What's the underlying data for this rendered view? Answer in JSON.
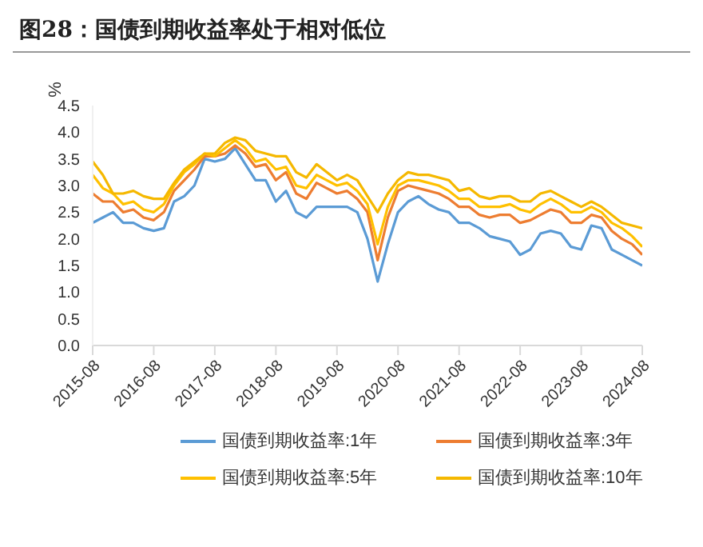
{
  "chart_data": {
    "type": "line",
    "title": "图28：国债到期收益率处于相对低位",
    "ylabel": "%",
    "x": [
      "2015-08",
      "2015-10",
      "2015-12",
      "2016-02",
      "2016-04",
      "2016-06",
      "2016-08",
      "2016-10",
      "2016-12",
      "2017-02",
      "2017-04",
      "2017-06",
      "2017-08",
      "2017-10",
      "2017-12",
      "2018-02",
      "2018-04",
      "2018-06",
      "2018-08",
      "2018-10",
      "2018-12",
      "2019-02",
      "2019-04",
      "2019-06",
      "2019-08",
      "2019-10",
      "2019-12",
      "2020-02",
      "2020-04",
      "2020-06",
      "2020-08",
      "2020-10",
      "2020-12",
      "2021-02",
      "2021-04",
      "2021-06",
      "2021-08",
      "2021-10",
      "2021-12",
      "2022-02",
      "2022-04",
      "2022-06",
      "2022-08",
      "2022-10",
      "2022-12",
      "2023-02",
      "2023-04",
      "2023-06",
      "2023-08",
      "2023-10",
      "2023-12",
      "2024-02",
      "2024-04",
      "2024-06",
      "2024-08"
    ],
    "series": [
      {
        "name": "国债到期收益率:1年",
        "color": "#5b9bd5",
        "values": [
          2.3,
          2.4,
          2.5,
          2.3,
          2.3,
          2.2,
          2.15,
          2.2,
          2.7,
          2.8,
          3.0,
          3.5,
          3.45,
          3.5,
          3.7,
          3.4,
          3.1,
          3.1,
          2.7,
          2.9,
          2.5,
          2.4,
          2.6,
          2.6,
          2.6,
          2.6,
          2.5,
          2.0,
          1.2,
          1.9,
          2.5,
          2.7,
          2.8,
          2.65,
          2.55,
          2.5,
          2.3,
          2.3,
          2.2,
          2.05,
          2.0,
          1.95,
          1.7,
          1.8,
          2.1,
          2.15,
          2.1,
          1.85,
          1.8,
          2.25,
          2.2,
          1.8,
          1.7,
          1.6,
          1.5
        ]
      },
      {
        "name": "国债到期收益率:3年",
        "color": "#ed7d31",
        "values": [
          2.85,
          2.7,
          2.7,
          2.5,
          2.55,
          2.4,
          2.35,
          2.5,
          2.9,
          3.1,
          3.3,
          3.55,
          3.55,
          3.6,
          3.75,
          3.6,
          3.35,
          3.4,
          3.1,
          3.25,
          2.85,
          2.75,
          3.05,
          2.95,
          2.85,
          2.9,
          2.75,
          2.5,
          1.6,
          2.4,
          2.9,
          3.0,
          2.95,
          2.9,
          2.85,
          2.75,
          2.6,
          2.6,
          2.45,
          2.4,
          2.45,
          2.45,
          2.3,
          2.35,
          2.45,
          2.55,
          2.5,
          2.3,
          2.3,
          2.45,
          2.4,
          2.15,
          2.0,
          1.9,
          1.7
        ]
      },
      {
        "name": "国债到期收益率:5年",
        "color": "#ffc000",
        "values": [
          3.2,
          2.95,
          2.85,
          2.65,
          2.7,
          2.55,
          2.5,
          2.65,
          3.0,
          3.25,
          3.4,
          3.6,
          3.55,
          3.7,
          3.85,
          3.7,
          3.45,
          3.5,
          3.3,
          3.35,
          3.0,
          2.95,
          3.2,
          3.1,
          3.0,
          3.05,
          2.9,
          2.65,
          1.9,
          2.6,
          3.0,
          3.1,
          3.1,
          3.05,
          3.0,
          2.9,
          2.75,
          2.75,
          2.6,
          2.6,
          2.6,
          2.65,
          2.55,
          2.5,
          2.65,
          2.75,
          2.65,
          2.5,
          2.5,
          2.6,
          2.5,
          2.3,
          2.2,
          2.05,
          1.85
        ]
      },
      {
        "name": "国债到期收益率:10年",
        "color": "#f5b800",
        "values": [
          3.45,
          3.2,
          2.85,
          2.85,
          2.9,
          2.8,
          2.75,
          2.75,
          3.05,
          3.3,
          3.45,
          3.6,
          3.6,
          3.8,
          3.9,
          3.85,
          3.65,
          3.6,
          3.55,
          3.55,
          3.25,
          3.15,
          3.4,
          3.25,
          3.1,
          3.2,
          3.1,
          2.8,
          2.5,
          2.85,
          3.1,
          3.25,
          3.2,
          3.2,
          3.15,
          3.1,
          2.9,
          2.95,
          2.8,
          2.75,
          2.8,
          2.8,
          2.7,
          2.7,
          2.85,
          2.9,
          2.8,
          2.7,
          2.6,
          2.7,
          2.6,
          2.45,
          2.3,
          2.25,
          2.2
        ]
      }
    ],
    "xlim": [
      "2015-08",
      "2024-08"
    ],
    "xticks": [
      "2015-08",
      "2016-08",
      "2017-08",
      "2018-08",
      "2019-08",
      "2020-08",
      "2021-08",
      "2022-08",
      "2023-08",
      "2024-08"
    ],
    "ylim": [
      0,
      4.5
    ],
    "yticks": [
      {
        "value": 0,
        "label": "0.0"
      },
      {
        "value": 0.5,
        "label": "0.5"
      },
      {
        "value": 1,
        "label": "1.0"
      },
      {
        "value": 1.5,
        "label": "1.5"
      },
      {
        "value": 2,
        "label": "2.0"
      },
      {
        "value": 2.5,
        "label": "2.5"
      },
      {
        "value": 3,
        "label": "3.0"
      },
      {
        "value": 3.5,
        "label": "3.5"
      },
      {
        "value": 4,
        "label": "4.0"
      },
      {
        "value": 4.5,
        "label": "4.5"
      }
    ],
    "grid": false,
    "legend": "bottom",
    "marker": "none",
    "line_style": "solid"
  }
}
